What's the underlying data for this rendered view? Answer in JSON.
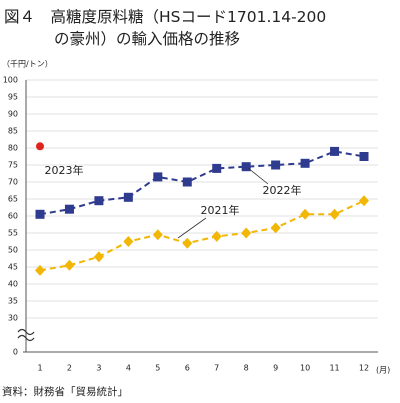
{
  "chart_data": {
    "type": "line",
    "title": [
      "図４　高糖度原料糖（HSコード1701.14-200",
      "の豪州）の輸入価格の推移"
    ],
    "y_unit": "（千円/トン）",
    "x_unit": "(月)",
    "source": "資料：財務省「貿易統計」",
    "categories": [
      "1",
      "2",
      "3",
      "4",
      "5",
      "6",
      "7",
      "8",
      "9",
      "10",
      "11",
      "12"
    ],
    "series": [
      {
        "name": "2021年",
        "color": "#f2b705",
        "marker": "diamond",
        "values": [
          44,
          45.5,
          48,
          52.5,
          54.5,
          52,
          54,
          55,
          56.5,
          60.5,
          60.5,
          64.5
        ]
      },
      {
        "name": "2022年",
        "color": "#2f3b8f",
        "marker": "square",
        "values": [
          60.5,
          62,
          64.5,
          65.5,
          71.5,
          70,
          74,
          74.5,
          75,
          75.5,
          79,
          77.5
        ]
      },
      {
        "name": "2023年",
        "color": "#e0231f",
        "marker": "circle",
        "values": [
          80.5,
          null,
          null,
          null,
          null,
          null,
          null,
          null,
          null,
          null,
          null,
          null
        ]
      }
    ],
    "ylim": [
      0,
      100
    ],
    "axis_break": [
      0,
      30
    ],
    "yticks": [
      0,
      30,
      35,
      40,
      45,
      50,
      55,
      60,
      65,
      70,
      75,
      80,
      85,
      90,
      95,
      100
    ],
    "grid": true
  }
}
